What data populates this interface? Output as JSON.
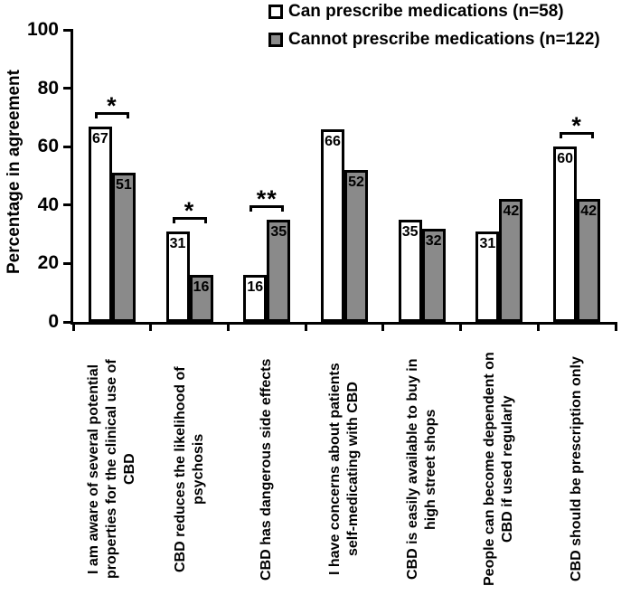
{
  "figure": {
    "background": "#ffffff",
    "bar_border_color": "#000000",
    "axis_color": "#000000"
  },
  "legend": {
    "position": "top-right",
    "items": [
      {
        "label": "Can prescribe medications (n=58)",
        "fill": "#ffffff"
      },
      {
        "label": "Cannot prescribe medications (n=122)",
        "fill": "#8a8a8a"
      }
    ]
  },
  "chart_data": {
    "type": "bar",
    "title": "",
    "xlabel": "",
    "ylabel": "Percentage in agreement",
    "ylim": [
      0,
      100
    ],
    "yticks": [
      0,
      20,
      40,
      60,
      80,
      100
    ],
    "grid": false,
    "legend_position": "top-right",
    "categories": [
      "I am aware of several potential properties for the clinical use of CBD",
      "CBD reduces the likelihood of psychosis",
      "CBD has dangerous side effects",
      "I have concerns about patients self-medicating with CBD",
      "CBD is easily available to buy in high street shops",
      "People can become dependent on CBD if used regularly",
      "CBD should be prescription only"
    ],
    "category_lines": [
      [
        "I am aware of several potential",
        "properties for the clinical use of",
        "CBD"
      ],
      [
        "CBD reduces the likelihood of",
        "psychosis"
      ],
      [
        "CBD has dangerous side effects"
      ],
      [
        "I have concerns about patients",
        "self-medicating with CBD"
      ],
      [
        "CBD is easily available to buy in",
        "high street shops"
      ],
      [
        "People can become dependent on",
        "CBD if used regularly"
      ],
      [
        "CBD should be prescription only"
      ]
    ],
    "series": [
      {
        "name": "Can prescribe medications (n=58)",
        "fill": "#ffffff",
        "values": [
          67,
          31,
          16,
          66,
          35,
          31,
          60
        ]
      },
      {
        "name": "Cannot prescribe medications (n=122)",
        "fill": "#8a8a8a",
        "values": [
          51,
          16,
          35,
          52,
          32,
          42,
          42
        ]
      }
    ],
    "significance": [
      {
        "pair_index": 0,
        "marker": "*"
      },
      {
        "pair_index": 1,
        "marker": "*"
      },
      {
        "pair_index": 2,
        "marker": "**"
      },
      {
        "pair_index": 6,
        "marker": "*"
      }
    ]
  }
}
